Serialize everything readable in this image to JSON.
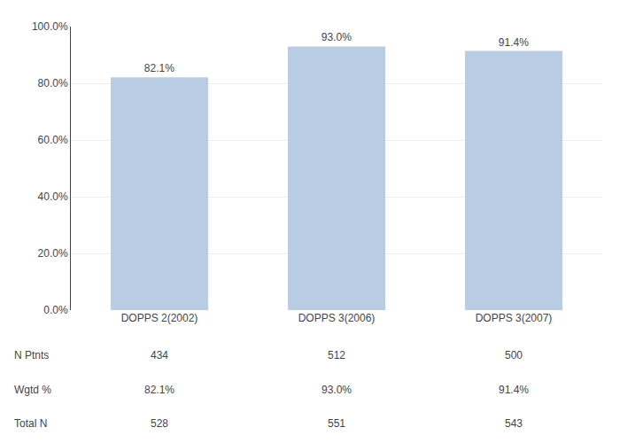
{
  "chart_data": {
    "type": "bar",
    "categories": [
      "DOPPS 2(2002)",
      "DOPPS 3(2006)",
      "DOPPS 3(2007)"
    ],
    "values": [
      82.1,
      93.0,
      91.4
    ],
    "value_labels": [
      "82.1%",
      "93.0%",
      "91.4%"
    ],
    "data_labels": true,
    "color": "#b8cce4",
    "ylim": [
      0,
      100
    ],
    "yticks": [
      {
        "value": 0,
        "label": "0.0%"
      },
      {
        "value": 20,
        "label": "20.0%"
      },
      {
        "value": 40,
        "label": "40.0%"
      },
      {
        "value": 60,
        "label": "60.0%"
      },
      {
        "value": 80,
        "label": "80.0%"
      },
      {
        "value": 100,
        "label": "100.0%"
      }
    ],
    "grid": true,
    "table": {
      "row_labels": [
        "N Ptnts",
        "Wgtd %",
        "Total N"
      ],
      "rows": [
        [
          "434",
          "512",
          "500"
        ],
        [
          "82.1%",
          "93.0%",
          "91.4%"
        ],
        [
          "528",
          "551",
          "543"
        ]
      ]
    }
  }
}
